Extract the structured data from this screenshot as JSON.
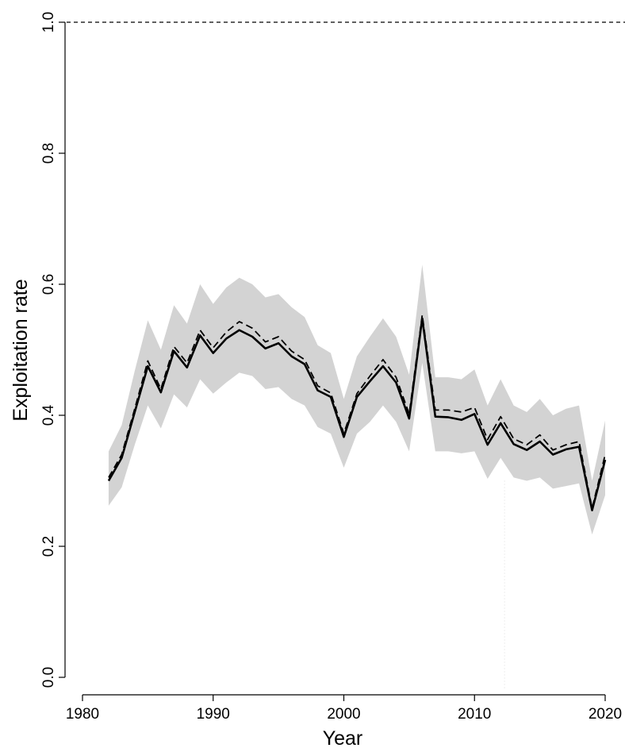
{
  "chart_data": {
    "type": "line",
    "xlabel": "Year",
    "ylabel": "Exploitation rate",
    "xlim": [
      1980,
      2020
    ],
    "ylim": [
      0,
      1.0
    ],
    "x_ticks": [
      1980,
      1990,
      2000,
      2010,
      2020
    ],
    "y_ticks": [
      0.0,
      0.2,
      0.4,
      0.6,
      0.8,
      1.0
    ],
    "y_tick_labels": [
      "0.0",
      "0.2",
      "0.4",
      "0.6",
      "0.8",
      "1.0"
    ],
    "grid": false,
    "reference_line": {
      "y": 1.0,
      "style": "dashed"
    },
    "reference_vline": {
      "x": 2012.3,
      "style": "dotted",
      "color": "#dddddd"
    },
    "x": [
      1982,
      1983,
      1984,
      1985,
      1986,
      1987,
      1988,
      1989,
      1990,
      1991,
      1992,
      1993,
      1994,
      1995,
      1996,
      1997,
      1998,
      1999,
      2000,
      2001,
      2002,
      2003,
      2004,
      2005,
      2006,
      2007,
      2008,
      2009,
      2010,
      2011,
      2012,
      2013,
      2014,
      2015,
      2016,
      2017,
      2018,
      2019,
      2020
    ],
    "series": [
      {
        "style": "solid",
        "color": "#000000",
        "values": [
          0.3,
          0.335,
          0.405,
          0.475,
          0.435,
          0.498,
          0.473,
          0.522,
          0.495,
          0.517,
          0.53,
          0.52,
          0.502,
          0.51,
          0.49,
          0.478,
          0.438,
          0.428,
          0.367,
          0.428,
          0.452,
          0.475,
          0.45,
          0.395,
          0.548,
          0.398,
          0.397,
          0.393,
          0.402,
          0.355,
          0.388,
          0.356,
          0.347,
          0.36,
          0.34,
          0.348,
          0.352,
          0.255,
          0.332
        ]
      },
      {
        "style": "dashed",
        "color": "#000000",
        "values": [
          0.305,
          0.34,
          0.41,
          0.483,
          0.44,
          0.505,
          0.48,
          0.53,
          0.503,
          0.527,
          0.543,
          0.533,
          0.512,
          0.52,
          0.498,
          0.485,
          0.445,
          0.434,
          0.372,
          0.433,
          0.46,
          0.485,
          0.458,
          0.402,
          0.553,
          0.408,
          0.408,
          0.405,
          0.412,
          0.363,
          0.398,
          0.364,
          0.355,
          0.37,
          0.347,
          0.355,
          0.36,
          0.258,
          0.34
        ]
      }
    ],
    "band": {
      "color": "#d3d3d3",
      "lower": [
        0.262,
        0.29,
        0.355,
        0.415,
        0.38,
        0.432,
        0.412,
        0.455,
        0.433,
        0.45,
        0.465,
        0.46,
        0.44,
        0.443,
        0.425,
        0.415,
        0.382,
        0.372,
        0.32,
        0.372,
        0.39,
        0.415,
        0.39,
        0.345,
        0.48,
        0.345,
        0.345,
        0.342,
        0.345,
        0.303,
        0.335,
        0.305,
        0.3,
        0.305,
        0.288,
        0.292,
        0.296,
        0.218,
        0.278
      ],
      "upper": [
        0.345,
        0.385,
        0.468,
        0.545,
        0.5,
        0.568,
        0.54,
        0.6,
        0.57,
        0.595,
        0.61,
        0.6,
        0.58,
        0.585,
        0.565,
        0.55,
        0.507,
        0.495,
        0.425,
        0.49,
        0.52,
        0.548,
        0.52,
        0.462,
        0.63,
        0.458,
        0.458,
        0.455,
        0.47,
        0.415,
        0.455,
        0.415,
        0.405,
        0.425,
        0.4,
        0.41,
        0.415,
        0.3,
        0.392
      ]
    }
  }
}
